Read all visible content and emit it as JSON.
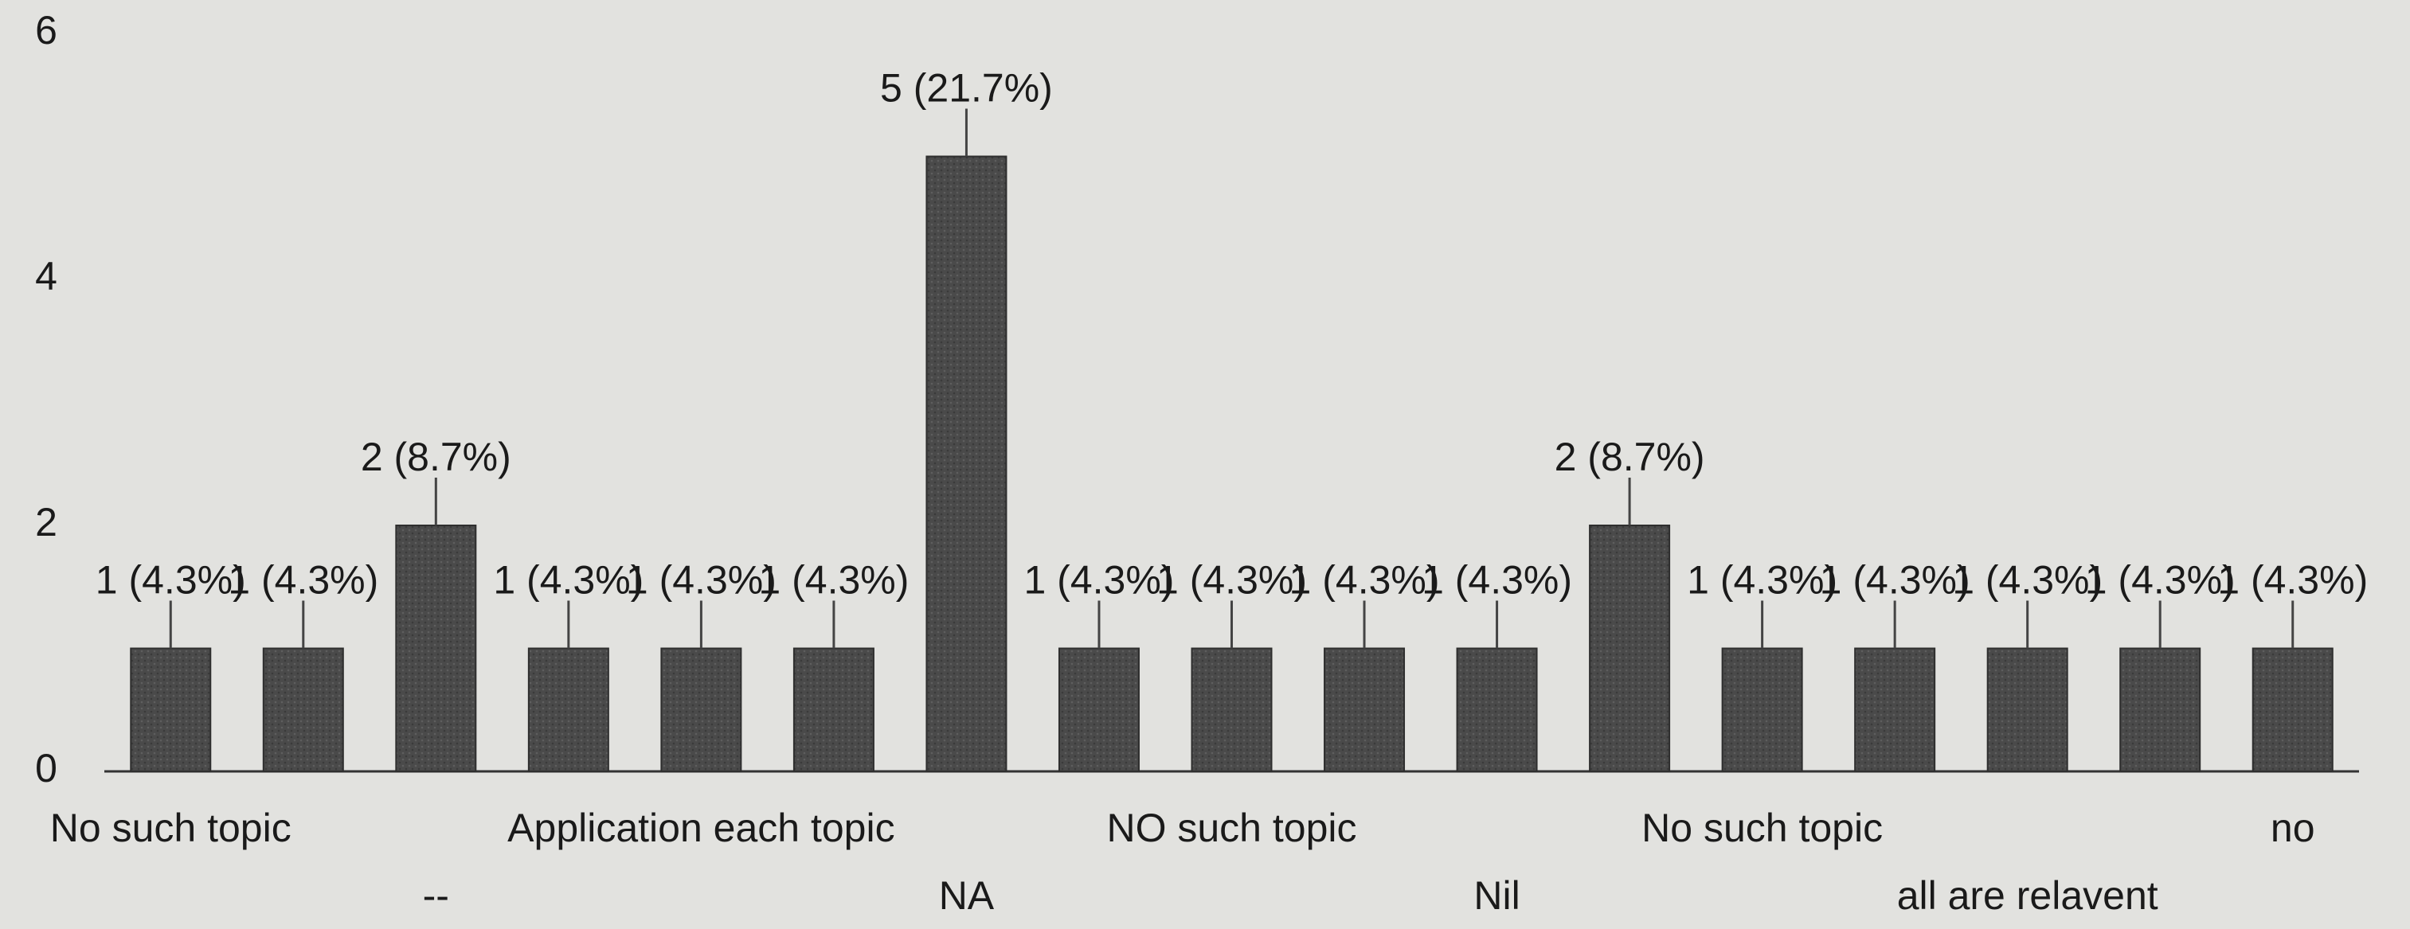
{
  "chart_data": {
    "type": "bar",
    "categories": [
      "No such topic",
      null,
      "--",
      null,
      "Application each topic",
      null,
      "NA",
      null,
      "NO such topic",
      null,
      "Nil",
      null,
      "No such topic",
      null,
      "all are relavent",
      null,
      "no"
    ],
    "values": [
      1,
      1,
      2,
      1,
      1,
      1,
      5,
      1,
      1,
      1,
      1,
      2,
      1,
      1,
      1,
      1,
      1
    ],
    "value_labels": [
      "1 (4.3%)",
      "1 (4.3%)",
      "2 (8.7%)",
      "1 (4.3%)",
      "1 (4.3%)",
      "1 (4.3%)",
      "5 (21.7%)",
      "1 (4.3%)",
      "1 (4.3%)",
      "1 (4.3%)",
      "1 (4.3%)",
      "2 (8.7%)",
      "1 (4.3%)",
      "1 (4.3%)",
      "1 (4.3%)",
      "1 (4.3%)",
      "1 (4.3%)"
    ],
    "color": "#4a4a4a",
    "ylim": [
      0,
      6
    ],
    "yticks": [
      0,
      2,
      4,
      6
    ],
    "grid": false
  }
}
